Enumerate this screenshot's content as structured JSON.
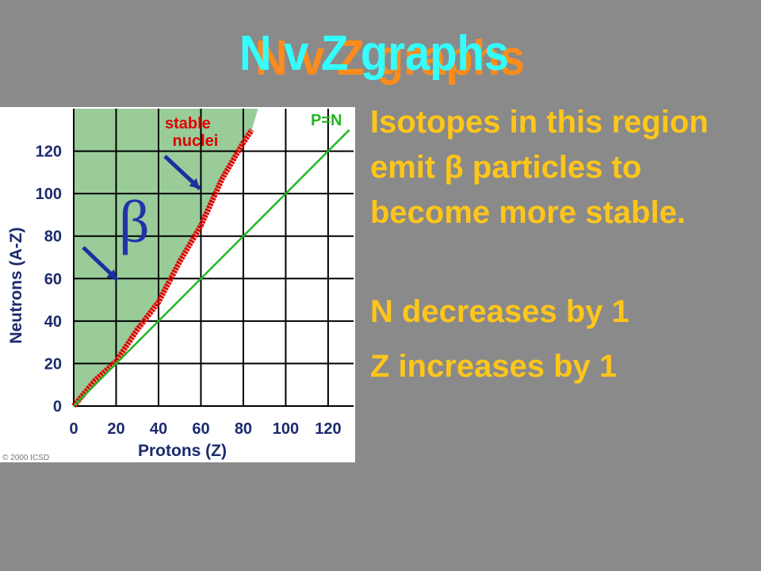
{
  "slide": {
    "title": "N v Z graphs",
    "bullets": [
      "Isotopes in this region emit β particles to become more stable.",
      "N decreases by 1",
      "Z increases by 1"
    ]
  },
  "chart_data": {
    "type": "line",
    "x_label": "Protons (Z)",
    "y_label": "Neutrons (A-Z)",
    "xlim": [
      0,
      132
    ],
    "ylim": [
      0,
      140
    ],
    "xticks": [
      0,
      20,
      40,
      60,
      80,
      100,
      120
    ],
    "yticks": [
      0,
      20,
      40,
      60,
      80,
      100,
      120
    ],
    "grid": true,
    "series": [
      {
        "name": "stable nuclei",
        "color": "#e00000",
        "x": [
          0,
          10,
          20,
          30,
          40,
          50,
          60,
          70,
          80,
          84
        ],
        "values": [
          0,
          12,
          21,
          36,
          49,
          68,
          85,
          107,
          124,
          130
        ]
      },
      {
        "name": "P=N",
        "color": "#22b822",
        "x": [
          0,
          130
        ],
        "values": [
          0,
          130
        ]
      }
    ],
    "annotations": [
      "β",
      "© 2000 ICSD"
    ]
  }
}
